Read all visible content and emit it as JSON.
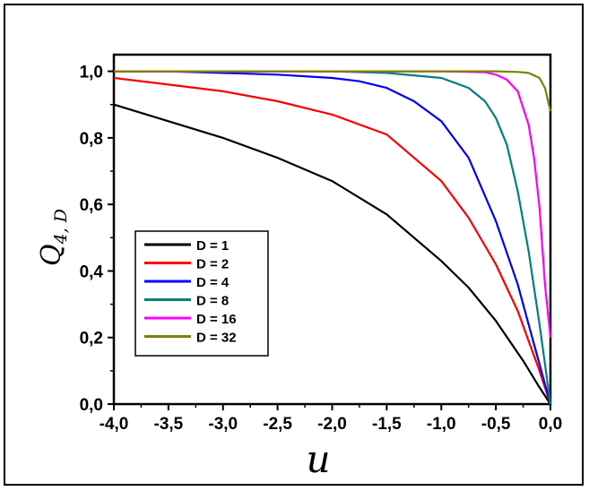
{
  "chart_data": {
    "type": "line",
    "title": "",
    "xlabel": "u",
    "ylabel_main": "Q",
    "ylabel_sub": "4, D",
    "xlim": [
      -4.0,
      0.0
    ],
    "ylim": [
      0.0,
      1.05
    ],
    "x_ticks": [
      -4.0,
      -3.5,
      -3.0,
      -2.5,
      -2.0,
      -1.5,
      -1.0,
      -0.5,
      0.0
    ],
    "x_tick_labels": [
      "-4,0",
      "-3,5",
      "-3,0",
      "-2,5",
      "-2,0",
      "-1,5",
      "-1,0",
      "-0,5",
      "0,0"
    ],
    "y_ticks": [
      0.0,
      0.2,
      0.4,
      0.6,
      0.8,
      1.0
    ],
    "y_tick_labels": [
      "0,0",
      "0,2",
      "0,4",
      "0,6",
      "0,8",
      "1,0"
    ],
    "grid": false,
    "legend_position": "lower-left",
    "series": [
      {
        "name": "D = 1",
        "color": "#000000",
        "x": [
          -4.0,
          -3.5,
          -3.0,
          -2.5,
          -2.0,
          -1.5,
          -1.0,
          -0.75,
          -0.5,
          -0.25,
          -0.1,
          0.0
        ],
        "y": [
          0.9,
          0.85,
          0.8,
          0.74,
          0.67,
          0.57,
          0.43,
          0.35,
          0.25,
          0.13,
          0.05,
          0.0
        ]
      },
      {
        "name": "D = 2",
        "color": "#ff0000",
        "x": [
          -4.0,
          -3.5,
          -3.0,
          -2.5,
          -2.0,
          -1.5,
          -1.0,
          -0.75,
          -0.5,
          -0.3,
          -0.2,
          -0.1,
          -0.05,
          0.0
        ],
        "y": [
          0.98,
          0.96,
          0.94,
          0.91,
          0.87,
          0.81,
          0.67,
          0.56,
          0.42,
          0.28,
          0.19,
          0.1,
          0.05,
          0.0
        ]
      },
      {
        "name": "D = 4",
        "color": "#0000ff",
        "x": [
          -4.0,
          -3.5,
          -3.0,
          -2.5,
          -2.0,
          -1.75,
          -1.5,
          -1.25,
          -1.0,
          -0.75,
          -0.5,
          -0.3,
          -0.2,
          -0.1,
          0.0
        ],
        "y": [
          1.0,
          1.0,
          0.995,
          0.99,
          0.98,
          0.97,
          0.95,
          0.91,
          0.85,
          0.74,
          0.55,
          0.36,
          0.24,
          0.12,
          0.0
        ]
      },
      {
        "name": "D = 8",
        "color": "#008080",
        "x": [
          -4.0,
          -2.0,
          -1.5,
          -1.0,
          -0.75,
          -0.6,
          -0.5,
          -0.4,
          -0.3,
          -0.2,
          -0.1,
          -0.05,
          0.0
        ],
        "y": [
          1.0,
          1.0,
          0.995,
          0.98,
          0.95,
          0.91,
          0.86,
          0.78,
          0.64,
          0.46,
          0.24,
          0.12,
          0.0
        ]
      },
      {
        "name": "D = 16",
        "color": "#ff00ff",
        "x": [
          -4.0,
          -1.0,
          -0.6,
          -0.5,
          -0.4,
          -0.3,
          -0.2,
          -0.15,
          -0.1,
          -0.05,
          0.0
        ],
        "y": [
          1.0,
          1.0,
          0.997,
          0.99,
          0.975,
          0.94,
          0.84,
          0.74,
          0.59,
          0.36,
          0.2
        ]
      },
      {
        "name": "D = 32",
        "color": "#808000",
        "x": [
          -4.0,
          -0.5,
          -0.3,
          -0.2,
          -0.1,
          -0.05,
          0.0
        ],
        "y": [
          1.0,
          1.0,
          0.998,
          0.995,
          0.98,
          0.95,
          0.88
        ]
      }
    ]
  }
}
